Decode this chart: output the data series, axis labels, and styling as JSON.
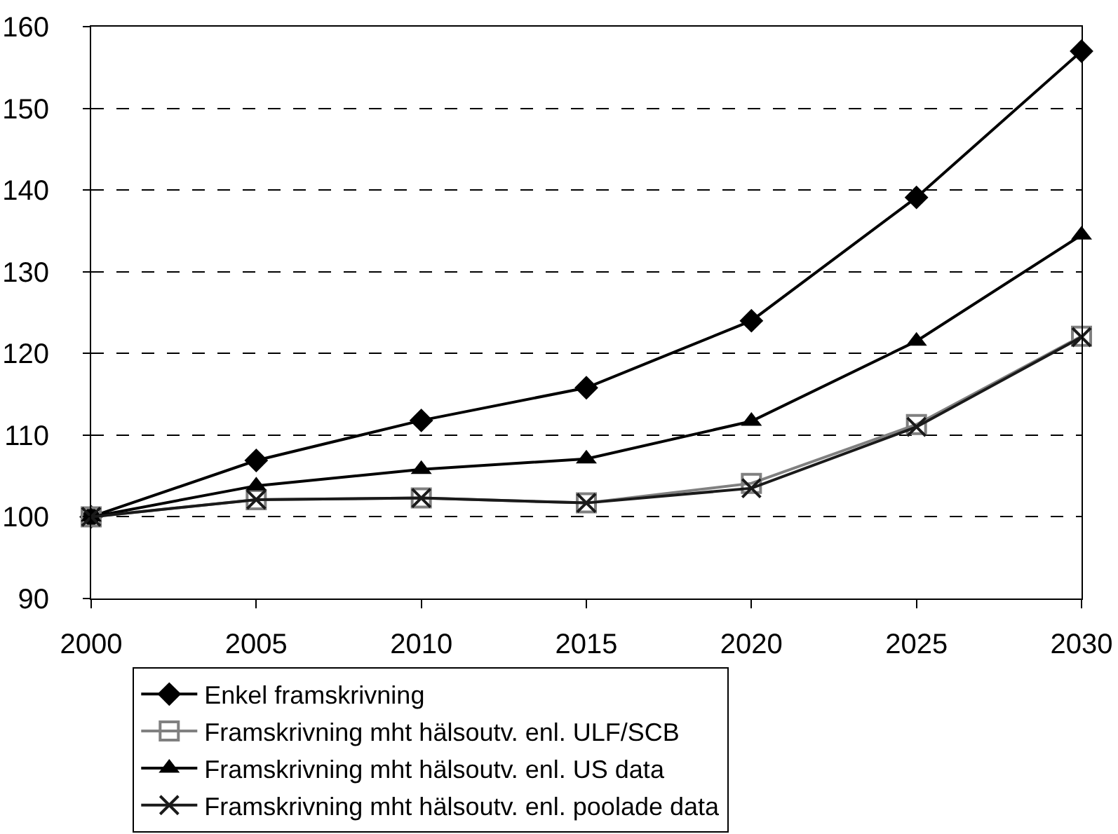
{
  "chart_data": {
    "type": "line",
    "x": [
      2000,
      2005,
      2010,
      2015,
      2020,
      2025,
      2030
    ],
    "xlim": [
      2000,
      2030
    ],
    "xticks": [
      2000,
      2005,
      2010,
      2015,
      2020,
      2025,
      2030
    ],
    "ylim": [
      90,
      160
    ],
    "yticks": [
      90,
      100,
      110,
      120,
      130,
      140,
      150,
      160
    ],
    "grid": "y",
    "legend": "bottom",
    "series": [
      {
        "name": "Enkel framskrivning",
        "color": "#000000",
        "marker": "diamond",
        "values": [
          100,
          106.9,
          111.8,
          115.8,
          124.0,
          139.1,
          157.0
        ]
      },
      {
        "name": "Framskrivning mht hälsoutv. enl. ULF/SCB",
        "color": "#808080",
        "marker": "square",
        "values": [
          100,
          102.1,
          102.3,
          101.7,
          104.1,
          111.3,
          122.1
        ]
      },
      {
        "name": "Framskrivning mht hälsoutv. enl. US data",
        "color": "#000000",
        "marker": "triangle",
        "values": [
          100,
          103.8,
          105.8,
          107.1,
          111.7,
          121.5,
          134.5
        ]
      },
      {
        "name": "Framskrivning mht hälsoutv. enl. poolade data",
        "color": "#1a1a1a",
        "marker": "cross",
        "values": [
          100,
          102.1,
          102.3,
          101.7,
          103.5,
          111.0,
          122.0
        ]
      }
    ]
  }
}
